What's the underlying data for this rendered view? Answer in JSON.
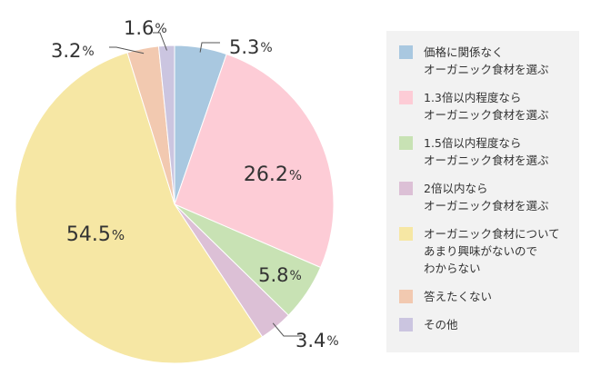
{
  "chart_data": {
    "type": "pie",
    "start_angle_deg": 0,
    "direction": "clockwise",
    "slices": [
      {
        "label": "価格に関係なく\nオーガニック食材を選ぶ",
        "value": 5.3,
        "value_label": "5.3",
        "color": "#a9c8e0"
      },
      {
        "label": "1.3倍以内程度なら\nオーガニック食材を選ぶ",
        "value": 26.2,
        "value_label": "26.2",
        "color": "#fdccd6"
      },
      {
        "label": "1.5倍以内程度なら\nオーガニック食材を選ぶ",
        "value": 5.8,
        "value_label": "5.8",
        "color": "#c8e2b4"
      },
      {
        "label": "2倍以内なら\nオーガニック食材を選ぶ",
        "value": 3.4,
        "value_label": "3.4",
        "color": "#dcc0d6"
      },
      {
        "label": "オーガニック食材について\nあまり興味がないので\nわからない",
        "value": 54.5,
        "value_label": "54.5",
        "color": "#f6e7a4"
      },
      {
        "label": "答えたくない",
        "value": 3.2,
        "value_label": "3.2",
        "color": "#f2c9b0"
      },
      {
        "label": "その他",
        "value": 1.6,
        "value_label": "1.6",
        "color": "#cbc5e0"
      }
    ],
    "unit": "%"
  }
}
